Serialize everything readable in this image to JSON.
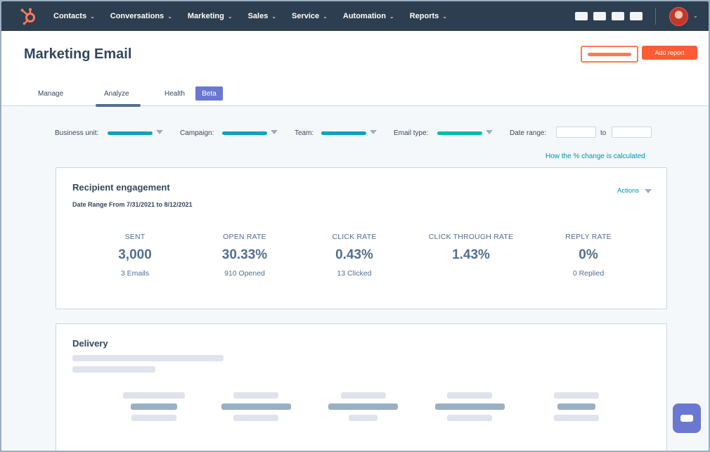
{
  "nav": {
    "items": [
      {
        "label": "Contacts"
      },
      {
        "label": "Conversations"
      },
      {
        "label": "Marketing"
      },
      {
        "label": "Sales"
      },
      {
        "label": "Service"
      },
      {
        "label": "Automation"
      },
      {
        "label": "Reports"
      }
    ]
  },
  "header": {
    "title": "Marketing Email",
    "add_report_label": "Add report",
    "tabs": [
      {
        "label": "Manage"
      },
      {
        "label": "Analyze"
      },
      {
        "label": "Health"
      }
    ],
    "active_tab": "Analyze",
    "beta_label": "Beta"
  },
  "filters": {
    "business_unit_label": "Business unit:",
    "campaign_label": "Campaign:",
    "team_label": "Team:",
    "email_type_label": "Email type:",
    "date_range_label": "Date range:",
    "to_label": "to",
    "pct_link": "How the % change is calculated"
  },
  "engagement": {
    "title": "Recipient engagement",
    "date_range": "Date Range From 7/31/2021 to 8/12/2021",
    "actions_label": "Actions",
    "metrics": [
      {
        "label": "SENT",
        "value": "3,000",
        "sub": "3 Emails"
      },
      {
        "label": "OPEN RATE",
        "value": "30.33%",
        "sub": "910 Opened"
      },
      {
        "label": "CLICK RATE",
        "value": "0.43%",
        "sub": "13 Clicked"
      },
      {
        "label": "CLICK THROUGH RATE",
        "value": "1.43%",
        "sub": ""
      },
      {
        "label": "REPLY RATE",
        "value": "0%",
        "sub": "0 Replied"
      }
    ]
  },
  "delivery": {
    "title": "Delivery"
  },
  "colors": {
    "nav_bg": "#2d3e50",
    "accent_orange": "#ff5c35",
    "teal": "#00a4bd",
    "link": "#0091ae",
    "beta_bg": "#6a78d1"
  },
  "icons": [
    "hubspot-logo-icon",
    "chevron-down-icon",
    "caret-down-icon",
    "chat-icon"
  ]
}
